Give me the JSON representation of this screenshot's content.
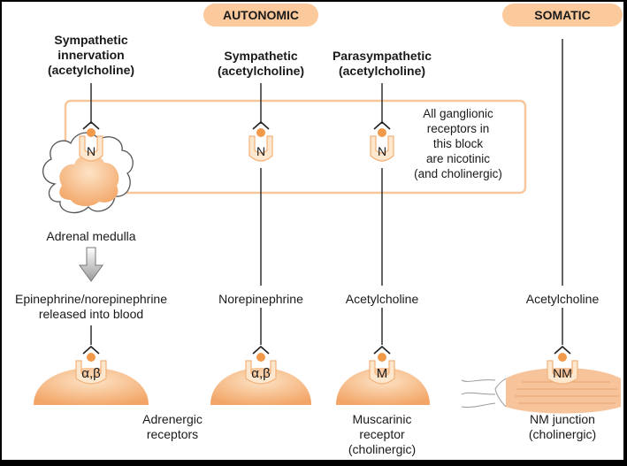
{
  "colors": {
    "background": "#ffffff",
    "accent_orange": "#f29a4a",
    "light_orange": "#fbd3ad",
    "pale_orange": "#fde7cf",
    "line": "#222222",
    "border": "#000000"
  },
  "headers": {
    "autonomic": "AUTONOMIC",
    "somatic": "SOMATIC"
  },
  "columns": {
    "col1": {
      "title_line1": "Sympathetic",
      "title_line2": "innervation",
      "title_line3": "(acetylcholine)",
      "ganglion_receptor": "N",
      "organ_label": "Adrenal medulla",
      "released_line1": "Epinephrine/norepinephrine",
      "released_line2": "released into blood",
      "target_receptor": "α,β"
    },
    "col2": {
      "title_line1": "Sympathetic",
      "title_line2": "(acetylcholine)",
      "ganglion_receptor": "N",
      "transmitter": "Norepinephrine",
      "target_receptor": "α,β"
    },
    "col3": {
      "title_line1": "Parasympathetic",
      "title_line2": "(acetylcholine)",
      "ganglion_receptor": "N",
      "transmitter": "Acetylcholine",
      "target_receptor": "M"
    },
    "col4": {
      "transmitter": "Acetylcholine",
      "target_receptor": "NM"
    }
  },
  "ganglion_note": {
    "line1": "All ganglionic",
    "line2": "receptors in",
    "line3": "this block",
    "line4": "are nicotinic",
    "line5": "(and cholinergic)"
  },
  "bottom_labels": {
    "adrenergic_line1": "Adrenergic",
    "adrenergic_line2": "receptors",
    "muscarinic_line1": "Muscarinic",
    "muscarinic_line2": "receptor",
    "muscarinic_line3": "(cholinergic)",
    "nm_line1": "NM junction",
    "nm_line2": "(cholinergic)"
  }
}
